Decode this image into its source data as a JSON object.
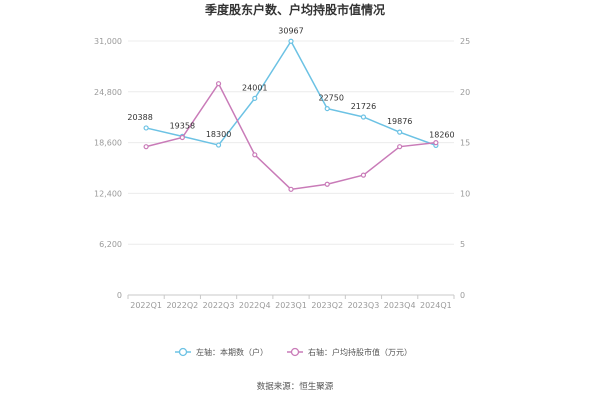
{
  "chart_data": {
    "type": "line",
    "title": "季度股东户数、户均持股市值情况",
    "categories": [
      "2022Q1",
      "2022Q2",
      "2022Q3",
      "2022Q4",
      "2023Q1",
      "2023Q2",
      "2023Q3",
      "2023Q4",
      "2024Q1"
    ],
    "y_left": {
      "ticks": [
        "0",
        "6,200",
        "12,400",
        "18,600",
        "24,800",
        "31,000"
      ],
      "range": [
        0,
        31000
      ]
    },
    "y_right": {
      "ticks": [
        "0",
        "5",
        "10",
        "15",
        "20",
        "25"
      ],
      "range": [
        0,
        25
      ]
    },
    "series": [
      {
        "name": "左轴：本期数（户）",
        "axis": "left",
        "color": "#6cc2e4",
        "values": [
          20388,
          19358,
          18300,
          24001,
          30967,
          22750,
          21726,
          19876,
          18260
        ],
        "labels": [
          "20388",
          "19358",
          "18300",
          "24001",
          "30967",
          "22750",
          "21726",
          "19876",
          "18260"
        ]
      },
      {
        "name": "右轴：户均持股市值（万元）",
        "axis": "right",
        "color": "#c97bb8",
        "values": [
          14.6,
          15.5,
          20.8,
          13.8,
          10.4,
          10.9,
          11.8,
          14.6,
          15.0
        ]
      }
    ],
    "grid": true,
    "legend_position": "bottom"
  },
  "source": "数据来源：恒生聚源"
}
